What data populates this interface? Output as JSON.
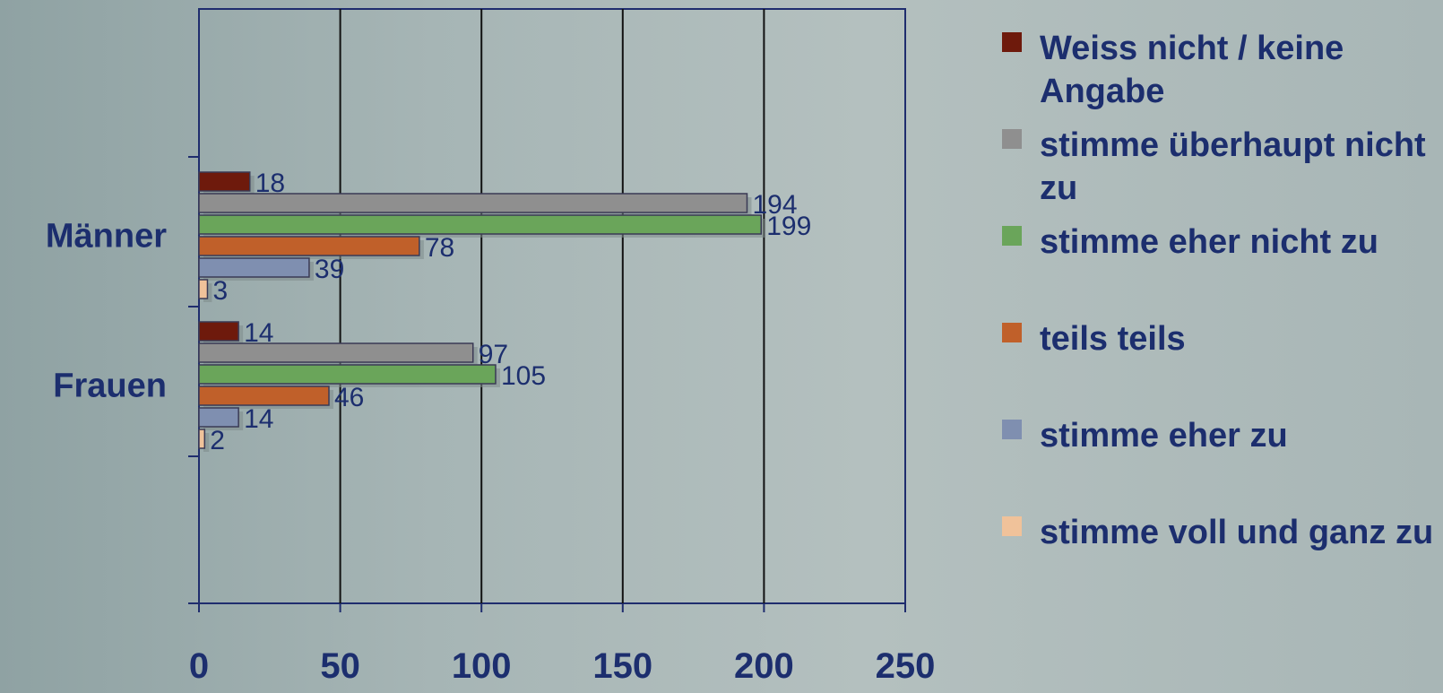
{
  "chart_data": {
    "type": "bar",
    "orientation": "horizontal",
    "categories": [
      "Männer",
      "Frauen"
    ],
    "series": [
      {
        "name": "Weiss nicht / keine Angabe",
        "color": "#6e1a0c",
        "values": [
          18,
          14
        ]
      },
      {
        "name": "stimme überhaupt nicht zu",
        "color": "#8f8f8f",
        "values": [
          194,
          97
        ]
      },
      {
        "name": "stimme eher nicht zu",
        "color": "#6aa55a",
        "values": [
          199,
          105
        ]
      },
      {
        "name": "teils teils",
        "color": "#c0602a",
        "values": [
          78,
          46
        ]
      },
      {
        "name": "stimme eher zu",
        "color": "#7f8fb0",
        "values": [
          39,
          14
        ]
      },
      {
        "name": "stimme voll und ganz zu",
        "color": "#f0c29a",
        "values": [
          3,
          2
        ]
      }
    ],
    "x_ticks": [
      "0",
      "50",
      "100",
      "150",
      "200",
      "250"
    ],
    "xlim": [
      0,
      250
    ],
    "grid": true,
    "legend_position": "right",
    "title": "",
    "xlabel": "",
    "ylabel": ""
  }
}
